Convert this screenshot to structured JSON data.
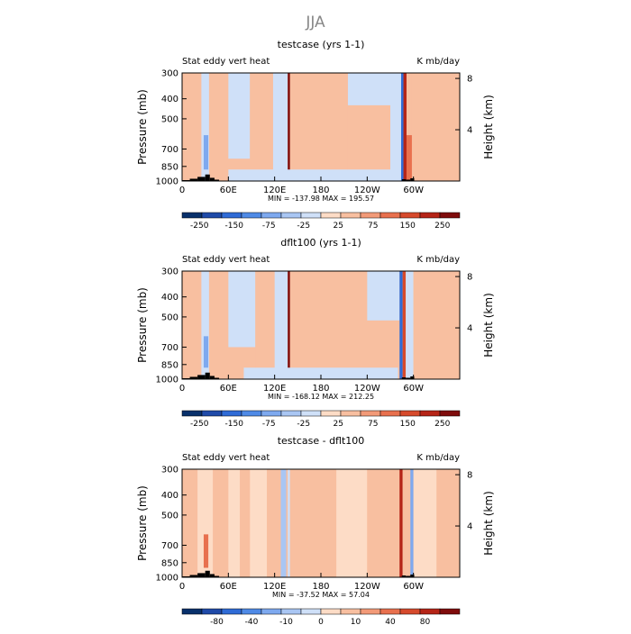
{
  "season": "JJA",
  "colors": {
    "background": "#ffffff",
    "frame": "#000000",
    "topography": "#000000",
    "palette": [
      "#08306b",
      "#1f4aa8",
      "#2f6bd6",
      "#4f8ae6",
      "#7ea9ef",
      "#a9c6f3",
      "#cfe0f8",
      "#fddcc6",
      "#f8bfa0",
      "#f29a78",
      "#e8704e",
      "#d64a2c",
      "#b52417",
      "#7f0c0c"
    ]
  },
  "chart_data": [
    {
      "type": "heatmap",
      "title": "testcase (yrs 1-1)",
      "left_label": "Stat eddy vert heat",
      "units": "K mb/day",
      "xlabel": "",
      "ylabel": "Pressure (mb)",
      "y2label": "Height (km)",
      "xlim": [
        0,
        360
      ],
      "xticks": [
        "0",
        "60E",
        "120E",
        "180",
        "120W",
        "60W"
      ],
      "xtick_values": [
        0,
        60,
        120,
        180,
        240,
        300
      ],
      "yticks": [
        "300",
        "400",
        "500",
        "700",
        "850",
        "1000"
      ],
      "ytick_values": [
        300,
        400,
        500,
        700,
        850,
        1000
      ],
      "y2ticks": [
        "8",
        "4"
      ],
      "y2tick_values": [
        8,
        4
      ],
      "levels": [
        -250,
        -200,
        -150,
        -100,
        -75,
        -50,
        -25,
        0,
        25,
        50,
        75,
        100,
        150,
        200,
        250
      ],
      "colorbar_labels": [
        "-250",
        "-150",
        "-75",
        "-25",
        "25",
        "75",
        "150",
        "250"
      ],
      "colorbar_label_values": [
        -250,
        -150,
        -75,
        -25,
        25,
        75,
        150,
        250
      ],
      "stats": "MIN = -137.98   MAX = 195.57",
      "bands": [
        {
          "lon": [
            0,
            25
          ],
          "p": [
            300,
            1000
          ],
          "value": 10
        },
        {
          "lon": [
            25,
            35
          ],
          "p": [
            300,
            1000
          ],
          "value": -30
        },
        {
          "lon": [
            35,
            60
          ],
          "p": [
            300,
            1000
          ],
          "value": 10
        },
        {
          "lon": [
            60,
            88
          ],
          "p": [
            300,
            780
          ],
          "value": -30
        },
        {
          "lon": [
            88,
            118
          ],
          "p": [
            300,
            1000
          ],
          "value": 10
        },
        {
          "lon": [
            118,
            137
          ],
          "p": [
            300,
            1000
          ],
          "value": -30
        },
        {
          "lon": [
            137,
            140
          ],
          "p": [
            300,
            1000
          ],
          "value": 200
        },
        {
          "lon": [
            140,
            215
          ],
          "p": [
            300,
            1000
          ],
          "value": 10
        },
        {
          "lon": [
            215,
            270
          ],
          "p": [
            300,
            430
          ],
          "value": -30
        },
        {
          "lon": [
            270,
            284
          ],
          "p": [
            300,
            1000
          ],
          "value": -30
        },
        {
          "lon": [
            284,
            287
          ],
          "p": [
            300,
            1000
          ],
          "value": -150
        },
        {
          "lon": [
            287,
            291
          ],
          "p": [
            300,
            1000
          ],
          "value": 150
        },
        {
          "lon": [
            291,
            298
          ],
          "p": [
            600,
            1000
          ],
          "value": 60
        },
        {
          "lon": [
            298,
            360
          ],
          "p": [
            300,
            1000
          ],
          "value": 10
        },
        {
          "lon": [
            60,
            280
          ],
          "p": [
            880,
            1000
          ],
          "value": -30
        },
        {
          "lon": [
            28,
            34
          ],
          "p": [
            600,
            880
          ],
          "value": -80
        }
      ],
      "topography": [
        {
          "lon": [
            0,
            10
          ],
          "p": 990
        },
        {
          "lon": [
            10,
            20
          ],
          "p": 975
        },
        {
          "lon": [
            20,
            30
          ],
          "p": 955
        },
        {
          "lon": [
            30,
            36
          ],
          "p": 930
        },
        {
          "lon": [
            36,
            42
          ],
          "p": 965
        },
        {
          "lon": [
            42,
            48
          ],
          "p": 985
        },
        {
          "lon": [
            285,
            290
          ],
          "p": 980
        },
        {
          "lon": [
            290,
            296
          ],
          "p": 985
        },
        {
          "lon": [
            296,
            301
          ],
          "p": 970
        }
      ]
    },
    {
      "type": "heatmap",
      "title": "dflt100 (yrs 1-1)",
      "left_label": "Stat eddy vert heat",
      "units": "K mb/day",
      "xlabel": "",
      "ylabel": "Pressure (mb)",
      "y2label": "Height (km)",
      "xlim": [
        0,
        360
      ],
      "xticks": [
        "0",
        "60E",
        "120E",
        "180",
        "120W",
        "60W"
      ],
      "xtick_values": [
        0,
        60,
        120,
        180,
        240,
        300
      ],
      "yticks": [
        "300",
        "400",
        "500",
        "700",
        "850",
        "1000"
      ],
      "ytick_values": [
        300,
        400,
        500,
        700,
        850,
        1000
      ],
      "y2ticks": [
        "8",
        "4"
      ],
      "y2tick_values": [
        8,
        4
      ],
      "levels": [
        -250,
        -200,
        -150,
        -100,
        -75,
        -50,
        -25,
        0,
        25,
        50,
        75,
        100,
        150,
        200,
        250
      ],
      "colorbar_labels": [
        "-250",
        "-150",
        "-75",
        "-25",
        "25",
        "75",
        "150",
        "250"
      ],
      "colorbar_label_values": [
        -250,
        -150,
        -75,
        -25,
        25,
        75,
        150,
        250
      ],
      "stats": "MIN = -168.12   MAX = 212.25",
      "bands": [
        {
          "lon": [
            0,
            25
          ],
          "p": [
            300,
            1000
          ],
          "value": 10
        },
        {
          "lon": [
            25,
            35
          ],
          "p": [
            300,
            1000
          ],
          "value": -30
        },
        {
          "lon": [
            35,
            60
          ],
          "p": [
            300,
            1000
          ],
          "value": 10
        },
        {
          "lon": [
            60,
            95
          ],
          "p": [
            300,
            700
          ],
          "value": -30
        },
        {
          "lon": [
            95,
            120
          ],
          "p": [
            300,
            1000
          ],
          "value": 10
        },
        {
          "lon": [
            120,
            137
          ],
          "p": [
            300,
            1000
          ],
          "value": -30
        },
        {
          "lon": [
            137,
            140
          ],
          "p": [
            300,
            1000
          ],
          "value": 220
        },
        {
          "lon": [
            140,
            280
          ],
          "p": [
            300,
            1000
          ],
          "value": 10
        },
        {
          "lon": [
            240,
            282
          ],
          "p": [
            300,
            520
          ],
          "value": -30
        },
        {
          "lon": [
            282,
            286
          ],
          "p": [
            300,
            1000
          ],
          "value": -170
        },
        {
          "lon": [
            286,
            290
          ],
          "p": [
            300,
            1000
          ],
          "value": 100
        },
        {
          "lon": [
            290,
            300
          ],
          "p": [
            300,
            1000
          ],
          "value": -30
        },
        {
          "lon": [
            300,
            360
          ],
          "p": [
            300,
            1000
          ],
          "value": 10
        },
        {
          "lon": [
            80,
            280
          ],
          "p": [
            880,
            1000
          ],
          "value": -30
        },
        {
          "lon": [
            28,
            34
          ],
          "p": [
            620,
            880
          ],
          "value": -90
        }
      ],
      "topography": [
        {
          "lon": [
            0,
            10
          ],
          "p": 990
        },
        {
          "lon": [
            10,
            20
          ],
          "p": 975
        },
        {
          "lon": [
            20,
            30
          ],
          "p": 955
        },
        {
          "lon": [
            30,
            36
          ],
          "p": 930
        },
        {
          "lon": [
            36,
            42
          ],
          "p": 965
        },
        {
          "lon": [
            42,
            48
          ],
          "p": 985
        },
        {
          "lon": [
            285,
            290
          ],
          "p": 980
        },
        {
          "lon": [
            290,
            296
          ],
          "p": 985
        },
        {
          "lon": [
            296,
            301
          ],
          "p": 970
        }
      ]
    },
    {
      "type": "heatmap",
      "title": "testcase - dflt100",
      "left_label": "Stat eddy vert heat",
      "units": "K mb/day",
      "xlabel": "",
      "ylabel": "Pressure (mb)",
      "y2label": "Height (km)",
      "xlim": [
        0,
        360
      ],
      "xticks": [
        "0",
        "60E",
        "120E",
        "180",
        "120W",
        "60W"
      ],
      "xtick_values": [
        0,
        60,
        120,
        180,
        240,
        300
      ],
      "yticks": [
        "300",
        "400",
        "500",
        "700",
        "850",
        "1000"
      ],
      "ytick_values": [
        300,
        400,
        500,
        700,
        850,
        1000
      ],
      "y2ticks": [
        "8",
        "4"
      ],
      "y2tick_values": [
        8,
        4
      ],
      "levels": [
        -100,
        -80,
        -60,
        -40,
        -20,
        -10,
        -5,
        0,
        5,
        10,
        20,
        40,
        60,
        80,
        100
      ],
      "colorbar_labels": [
        "-80",
        "-40",
        "-10",
        "0",
        "10",
        "40",
        "80"
      ],
      "colorbar_label_values": [
        -80,
        -40,
        -10,
        0,
        10,
        40,
        80
      ],
      "stats": "MIN = -37.52   MAX =  57.04",
      "bands": [
        {
          "lon": [
            0,
            20
          ],
          "p": [
            300,
            1000
          ],
          "value": 3
        },
        {
          "lon": [
            20,
            40
          ],
          "p": [
            300,
            1000
          ],
          "value": -3
        },
        {
          "lon": [
            28,
            34
          ],
          "p": [
            620,
            900
          ],
          "value": 15
        },
        {
          "lon": [
            40,
            60
          ],
          "p": [
            300,
            1000
          ],
          "value": 3
        },
        {
          "lon": [
            60,
            75
          ],
          "p": [
            300,
            1000
          ],
          "value": -3
        },
        {
          "lon": [
            75,
            88
          ],
          "p": [
            300,
            1000
          ],
          "value": 3
        },
        {
          "lon": [
            88,
            110
          ],
          "p": [
            300,
            1000
          ],
          "value": -3
        },
        {
          "lon": [
            110,
            128
          ],
          "p": [
            300,
            1000
          ],
          "value": 3
        },
        {
          "lon": [
            128,
            135
          ],
          "p": [
            300,
            1000
          ],
          "value": -15
        },
        {
          "lon": [
            135,
            137
          ],
          "p": [
            300,
            1000
          ],
          "value": 3
        },
        {
          "lon": [
            137,
            140
          ],
          "p": [
            300,
            1000
          ],
          "value": -8
        },
        {
          "lon": [
            140,
            200
          ],
          "p": [
            300,
            1000
          ],
          "value": 3
        },
        {
          "lon": [
            200,
            240
          ],
          "p": [
            300,
            1000
          ],
          "value": -3
        },
        {
          "lon": [
            240,
            282
          ],
          "p": [
            300,
            1000
          ],
          "value": 3
        },
        {
          "lon": [
            282,
            286
          ],
          "p": [
            300,
            1000
          ],
          "value": 45
        },
        {
          "lon": [
            286,
            296
          ],
          "p": [
            300,
            1000
          ],
          "value": 3
        },
        {
          "lon": [
            296,
            300
          ],
          "p": [
            300,
            1000
          ],
          "value": -25
        },
        {
          "lon": [
            300,
            330
          ],
          "p": [
            300,
            1000
          ],
          "value": -3
        },
        {
          "lon": [
            330,
            360
          ],
          "p": [
            300,
            1000
          ],
          "value": 3
        }
      ],
      "topography": [
        {
          "lon": [
            0,
            10
          ],
          "p": 990
        },
        {
          "lon": [
            10,
            20
          ],
          "p": 975
        },
        {
          "lon": [
            20,
            30
          ],
          "p": 955
        },
        {
          "lon": [
            30,
            36
          ],
          "p": 930
        },
        {
          "lon": [
            36,
            42
          ],
          "p": 965
        },
        {
          "lon": [
            42,
            48
          ],
          "p": 985
        },
        {
          "lon": [
            285,
            290
          ],
          "p": 980
        },
        {
          "lon": [
            290,
            296
          ],
          "p": 985
        },
        {
          "lon": [
            296,
            301
          ],
          "p": 970
        }
      ]
    }
  ]
}
